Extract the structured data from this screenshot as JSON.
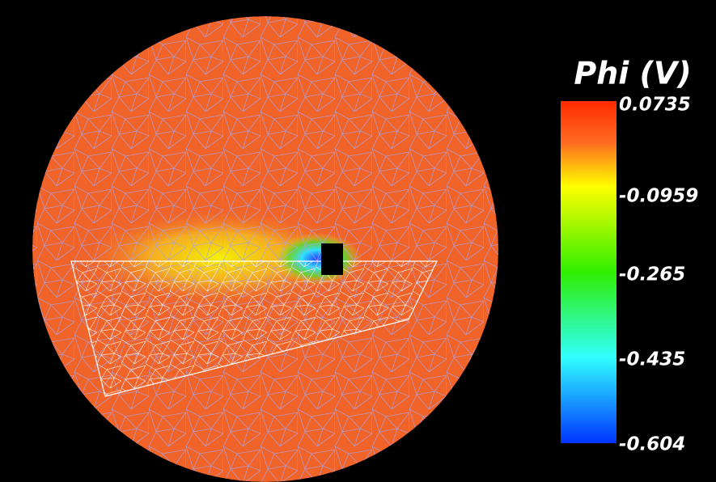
{
  "colorbar": {
    "title": "Phi (V)",
    "labels": [
      "0.0735",
      "-0.0959",
      "-0.265",
      "-0.435",
      "-0.604"
    ]
  }
}
